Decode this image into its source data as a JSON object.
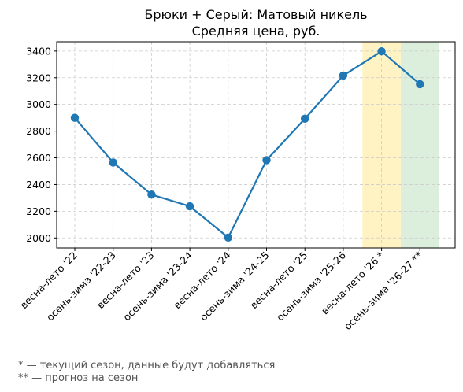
{
  "chart_data": {
    "type": "line",
    "title": "Брюки + Серый: Матовый никель",
    "subtitle": "Средняя цена, руб.",
    "xlabel": "",
    "ylabel": "",
    "categories": [
      "весна-лето '22",
      "осень-зима '22-23",
      "весна-лето '23",
      "осень-зима '23-24",
      "весна-лето '24",
      "осень-зима '24-25",
      "весна-лето '25",
      "осень-зима '25-26",
      "весна-лето '26 *",
      "осень-зима '26-27 **"
    ],
    "series": [
      {
        "values": [
          2900,
          2565,
          2325,
          2237,
          2003,
          2583,
          2893,
          3217,
          3398,
          3152
        ],
        "color": "#1f77b4"
      }
    ],
    "yticks": [
      2000,
      2200,
      2400,
      2600,
      2800,
      3000,
      3200,
      3400
    ],
    "ylim": [
      1925,
      3470
    ],
    "grid": true,
    "highlights": [
      {
        "category_index": 8,
        "color": "#fff3c4"
      },
      {
        "category_index": 9,
        "color": "#dcefdc"
      }
    ]
  },
  "footnotes": {
    "current": "* — текущий сезон, данные будут добавляться",
    "forecast": "** — прогноз на сезон"
  }
}
